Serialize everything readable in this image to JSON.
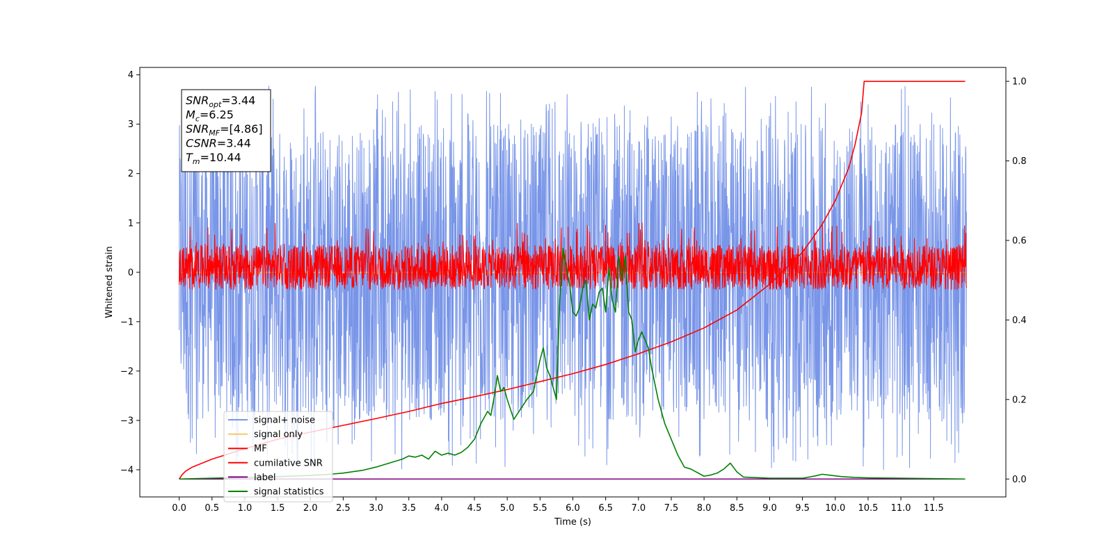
{
  "chart_data": {
    "type": "line",
    "xlabel": "Time (s)",
    "ylabel_left": "Whitened strain",
    "ylabel_right": "",
    "xlim": [
      -0.6,
      12.6
    ],
    "ylim_left": [
      -4.55,
      4.15
    ],
    "ylim_right": [
      -0.045,
      1.035
    ],
    "x_ticks": [
      0.0,
      0.5,
      1.0,
      1.5,
      2.0,
      2.5,
      3.0,
      3.5,
      4.0,
      4.5,
      5.0,
      5.5,
      6.0,
      6.5,
      7.0,
      7.5,
      8.0,
      8.5,
      9.0,
      9.5,
      10.0,
      10.5,
      11.0,
      11.5
    ],
    "x_tick_labels": [
      "0.0",
      "0.5",
      "1.0",
      "1.5",
      "2.0",
      "2.5",
      "3.0",
      "3.5",
      "4.0",
      "4.5",
      "5.0",
      "5.5",
      "6.0",
      "6.5",
      "7.0",
      "7.5",
      "8.0",
      "8.5",
      "9.0",
      "9.5",
      "10.0",
      "10.5",
      "11.0",
      "11.5"
    ],
    "y_ticks_left": [
      -4,
      -3,
      -2,
      -1,
      0,
      1,
      2,
      3,
      4
    ],
    "y_tick_labels_left": [
      "−4",
      "−3",
      "−2",
      "−1",
      "0",
      "1",
      "2",
      "3",
      "4"
    ],
    "y_ticks_right": [
      0.0,
      0.2,
      0.4,
      0.6,
      0.8,
      1.0
    ],
    "y_tick_labels_right": [
      "0.0",
      "0.2",
      "0.4",
      "0.6",
      "0.8",
      "1.0"
    ],
    "legend_position": "lower-left",
    "annotation": {
      "lines": [
        {
          "base": "SNR",
          "sub": "opt",
          "value": "=3.44"
        },
        {
          "base": "M",
          "sub": "c",
          "value": "=6.25"
        },
        {
          "base": "SNR",
          "sub": "MF",
          "value": "=[4.86]"
        },
        {
          "base": "CSNR",
          "sub": "",
          "value": "=3.44"
        },
        {
          "base": "T",
          "sub": "m",
          "value": "=10.44"
        }
      ]
    },
    "series": [
      {
        "name": "signal+ noise",
        "color": "#7895e8",
        "axis": "left",
        "style": "noise",
        "x_range": [
          0.0,
          12.0
        ],
        "band_range": [
          -3.0,
          3.0
        ],
        "extremes_range": [
          -4.0,
          3.8
        ]
      },
      {
        "name": "signal only",
        "color": "#f5c86a",
        "axis": "left",
        "style": "flat",
        "x_range": [
          0.0,
          12.0
        ],
        "value": 0.0
      },
      {
        "name": "MF",
        "color": "#ff0000",
        "axis": "left",
        "style": "noise",
        "x_range": [
          0.0,
          12.0
        ],
        "band_range": [
          -0.32,
          0.55
        ],
        "extremes_range": [
          -0.35,
          1.0
        ]
      },
      {
        "name": "cumilative SNR",
        "color": "#ff0000",
        "axis": "right",
        "style": "line",
        "x": [
          0.0,
          0.05,
          0.1,
          0.2,
          0.5,
          1.0,
          1.5,
          2.0,
          2.5,
          3.0,
          3.5,
          4.0,
          4.5,
          5.0,
          5.5,
          6.0,
          6.5,
          7.0,
          7.5,
          8.0,
          8.5,
          9.0,
          9.5,
          9.8,
          10.0,
          10.2,
          10.3,
          10.4,
          10.44,
          10.5,
          11.0,
          11.5,
          11.98
        ],
        "y": [
          0.0,
          0.012,
          0.02,
          0.03,
          0.05,
          0.076,
          0.1,
          0.118,
          0.135,
          0.152,
          0.17,
          0.19,
          0.207,
          0.225,
          0.245,
          0.265,
          0.288,
          0.315,
          0.345,
          0.38,
          0.425,
          0.49,
          0.57,
          0.64,
          0.7,
          0.78,
          0.84,
          0.92,
          1.0,
          1.0,
          1.0,
          1.0,
          1.0
        ]
      },
      {
        "name": "label",
        "color": "#800080",
        "axis": "right",
        "style": "line",
        "x": [
          0.0,
          11.98
        ],
        "y": [
          0.0,
          0.0
        ]
      },
      {
        "name": "signal statistics",
        "color": "#008000",
        "axis": "right",
        "style": "line",
        "x": [
          0.0,
          0.5,
          1.0,
          1.5,
          2.0,
          2.3,
          2.5,
          2.8,
          3.0,
          3.2,
          3.4,
          3.5,
          3.6,
          3.7,
          3.8,
          3.9,
          4.0,
          4.1,
          4.2,
          4.3,
          4.4,
          4.5,
          4.6,
          4.7,
          4.75,
          4.8,
          4.85,
          4.9,
          4.95,
          5.0,
          5.1,
          5.2,
          5.3,
          5.4,
          5.5,
          5.55,
          5.6,
          5.65,
          5.7,
          5.75,
          5.8,
          5.85,
          5.88,
          5.95,
          6.0,
          6.05,
          6.1,
          6.15,
          6.2,
          6.25,
          6.3,
          6.35,
          6.4,
          6.45,
          6.5,
          6.55,
          6.6,
          6.65,
          6.7,
          6.75,
          6.8,
          6.85,
          6.9,
          6.95,
          7.0,
          7.05,
          7.1,
          7.15,
          7.2,
          7.3,
          7.4,
          7.5,
          7.6,
          7.7,
          7.8,
          8.0,
          8.1,
          8.2,
          8.3,
          8.4,
          8.5,
          8.6,
          9.0,
          9.5,
          9.7,
          9.8,
          9.9,
          10.0,
          10.1,
          10.3,
          10.5,
          11.0,
          11.5,
          11.98
        ],
        "y": [
          0.0,
          0.002,
          0.004,
          0.006,
          0.009,
          0.012,
          0.015,
          0.022,
          0.03,
          0.04,
          0.05,
          0.058,
          0.055,
          0.06,
          0.05,
          0.07,
          0.06,
          0.065,
          0.06,
          0.067,
          0.08,
          0.1,
          0.14,
          0.17,
          0.16,
          0.205,
          0.26,
          0.22,
          0.23,
          0.2,
          0.15,
          0.175,
          0.2,
          0.22,
          0.3,
          0.33,
          0.28,
          0.26,
          0.23,
          0.2,
          0.45,
          0.58,
          0.55,
          0.49,
          0.42,
          0.41,
          0.43,
          0.48,
          0.5,
          0.4,
          0.44,
          0.43,
          0.47,
          0.48,
          0.42,
          0.53,
          0.45,
          0.42,
          0.56,
          0.5,
          0.56,
          0.42,
          0.4,
          0.32,
          0.35,
          0.37,
          0.35,
          0.33,
          0.28,
          0.2,
          0.14,
          0.1,
          0.06,
          0.03,
          0.025,
          0.007,
          0.01,
          0.015,
          0.025,
          0.04,
          0.018,
          0.005,
          0.002,
          0.002,
          0.008,
          0.012,
          0.01,
          0.008,
          0.006,
          0.004,
          0.003,
          0.002,
          0.001,
          0.0
        ]
      }
    ]
  }
}
